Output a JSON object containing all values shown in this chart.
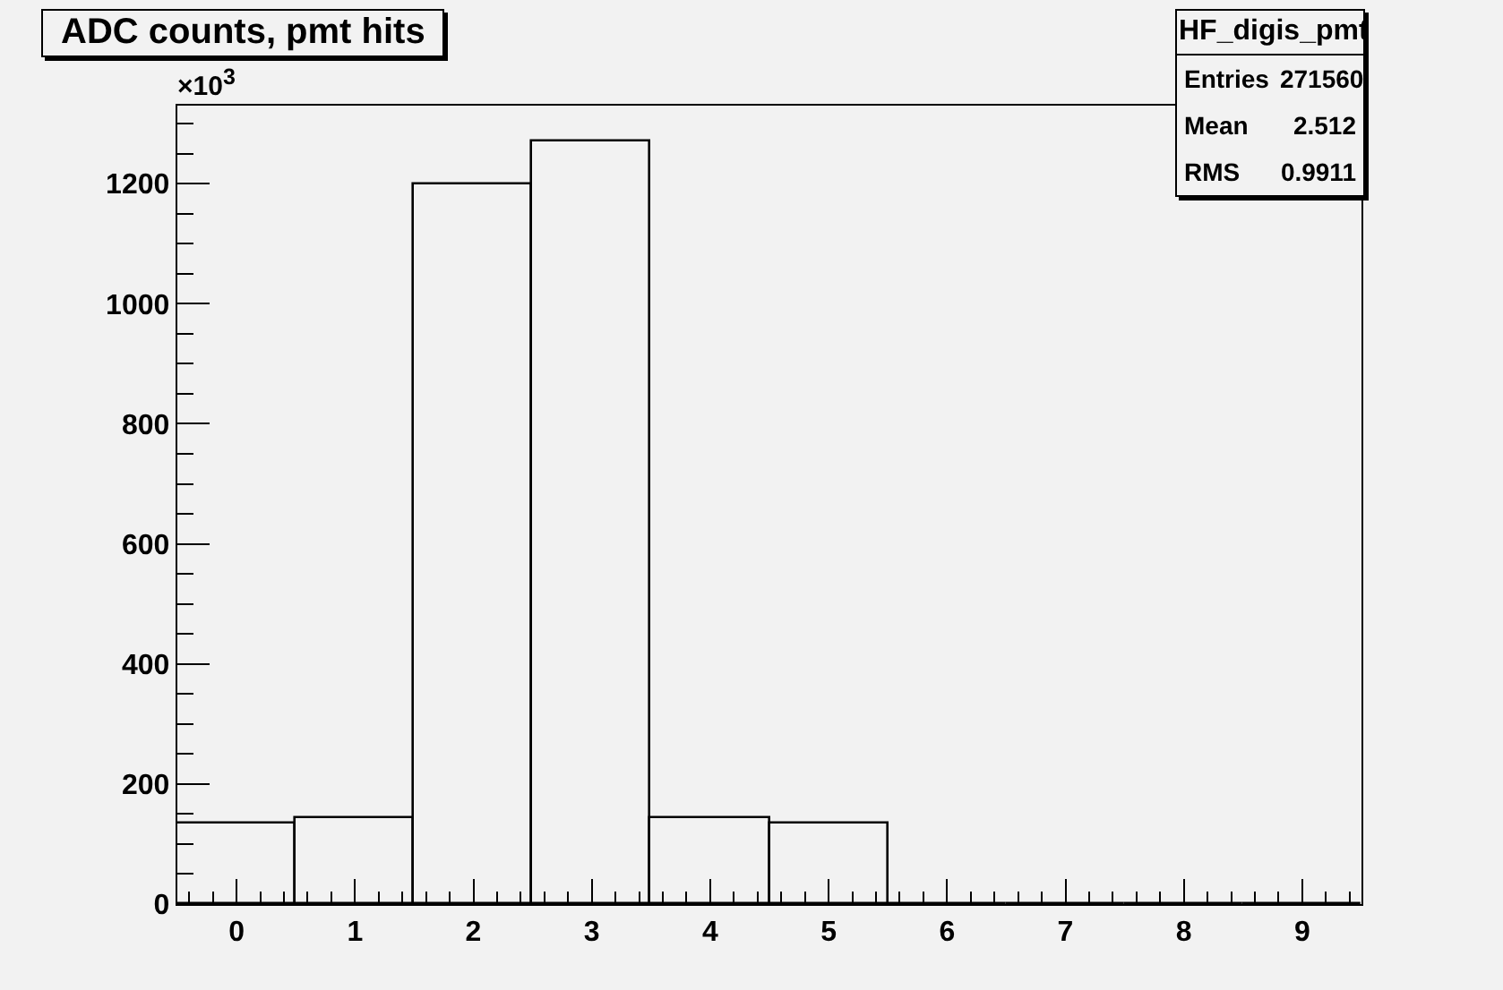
{
  "chart_data": {
    "type": "histogram",
    "title": "ADC counts, pmt hits",
    "bins": [
      -0.5,
      0.5,
      1.5,
      2.5,
      3.5,
      4.5,
      5.5,
      6.5,
      7.5,
      8.5,
      9.5
    ],
    "values": [
      135,
      143,
      1200,
      1270,
      143,
      135,
      0,
      0,
      0,
      0
    ],
    "color": "#000000",
    "xlim": [
      -0.5,
      9.5
    ],
    "xticks": [
      0,
      1,
      2,
      3,
      4,
      5,
      6,
      7,
      8,
      9
    ],
    "ylim": [
      0,
      1330
    ],
    "yticks": [
      0,
      200,
      400,
      600,
      800,
      1000,
      1200
    ],
    "grid": false,
    "legend": false,
    "annotations": [
      "×10$^{3}$",
      "HF_digis_pmt",
      "Entries 271560",
      "Mean 2.512",
      "RMS 0.9911"
    ]
  }
}
